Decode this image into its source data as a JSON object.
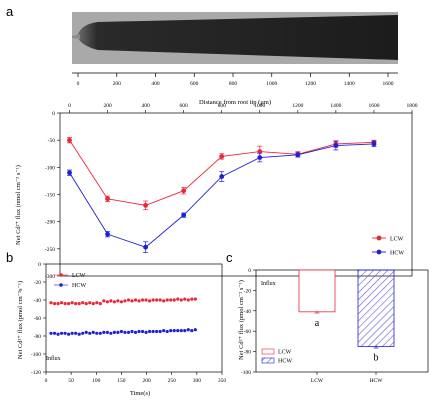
{
  "panels": {
    "a_letter": "a",
    "b_letter": "b",
    "c_letter": "c"
  },
  "root_image": {
    "axis_ticks": [
      "0",
      "200",
      "400",
      "600",
      "800",
      "1000",
      "1200",
      "1400",
      "1600"
    ],
    "axis_title": "Distance from root tip (μm)"
  },
  "colors": {
    "LCW": "#e8283a",
    "HCW": "#2020d8",
    "axis": "#000000"
  },
  "chart_data": [
    {
      "type": "line",
      "panel": "a",
      "x": [
        0,
        200,
        400,
        600,
        800,
        1000,
        1200,
        1400,
        1600
      ],
      "series": [
        {
          "name": "LCW",
          "values": [
            -50,
            -158,
            -170,
            -143,
            -80,
            -71,
            -76,
            -57,
            -54
          ],
          "errors": [
            5,
            5,
            8,
            6,
            5,
            10,
            5,
            6,
            4
          ]
        },
        {
          "name": "HCW",
          "values": [
            -110,
            -223,
            -247,
            -188,
            -117,
            -82,
            -77,
            -60,
            -57
          ],
          "errors": [
            5,
            5,
            10,
            4,
            9,
            8,
            4,
            8,
            5
          ]
        }
      ],
      "xlim": [
        -50,
        1800
      ],
      "ylim": [
        -300,
        0
      ],
      "xticks": [
        0,
        200,
        400,
        600,
        800,
        1000,
        1200,
        1400,
        1600,
        1800
      ],
      "yticks": [
        0,
        -50,
        -100,
        -150,
        -200,
        -250,
        -300
      ],
      "ylabel": "Net Cd²⁺ flux (nmol cm⁻² s⁻¹)",
      "legend": "right"
    },
    {
      "type": "scatter",
      "panel": "b",
      "x": [
        10,
        17,
        24,
        31,
        38,
        45,
        52,
        59,
        66,
        73,
        80,
        87,
        94,
        101,
        108,
        115,
        122,
        129,
        136,
        143,
        150,
        157,
        164,
        171,
        178,
        185,
        192,
        199,
        206,
        213,
        220,
        227,
        234,
        241,
        248,
        255,
        262,
        269,
        276,
        283,
        290,
        297
      ],
      "series": [
        {
          "name": "LCW",
          "values": [
            -43,
            -44,
            -44,
            -43,
            -44,
            -44,
            -43,
            -44,
            -44,
            -43,
            -44,
            -43,
            -44,
            -43,
            -44,
            -41,
            -42,
            -41,
            -42,
            -41,
            -42,
            -41,
            -40,
            -41,
            -40,
            -41,
            -40,
            -40,
            -41,
            -40,
            -40,
            -40,
            -41,
            -40,
            -40,
            -40,
            -39,
            -40,
            -39,
            -40,
            -39,
            -39
          ]
        },
        {
          "name": "HCW",
          "values": [
            -77,
            -77,
            -78,
            -77,
            -77,
            -78,
            -77,
            -77,
            -78,
            -77,
            -76,
            -77,
            -76,
            -77,
            -77,
            -76,
            -76,
            -77,
            -76,
            -76,
            -75,
            -76,
            -76,
            -75,
            -76,
            -75,
            -75,
            -76,
            -75,
            -75,
            -75,
            -75,
            -74,
            -75,
            -74,
            -74,
            -74,
            -74,
            -74,
            -73,
            -74,
            -73
          ]
        }
      ],
      "xlim": [
        0,
        350
      ],
      "ylim": [
        -120,
        0
      ],
      "xticks": [
        0,
        50,
        100,
        150,
        200,
        250,
        300,
        350
      ],
      "yticks": [
        0,
        -20,
        -40,
        -60,
        -80,
        -100,
        -120
      ],
      "xlabel": "Time(s)",
      "ylabel": "Net Cd²⁺ flux (pmol cm⁻²s⁻¹)",
      "annotation": "Influx",
      "legend": "top-left"
    },
    {
      "type": "bar",
      "panel": "c",
      "categories": [
        "LCW",
        "HCW"
      ],
      "values": [
        -41,
        -75
      ],
      "errors": [
        1.2,
        1.5
      ],
      "letters": [
        "a",
        "b"
      ],
      "ylim": [
        -100,
        0
      ],
      "yticks": [
        0,
        -20,
        -40,
        -60,
        -80,
        -100
      ],
      "ylabel": "Net Cd²⁺ flux (pmol cm⁻² s⁻¹)",
      "annotation": "Influx",
      "legend": "bottom-left"
    }
  ]
}
